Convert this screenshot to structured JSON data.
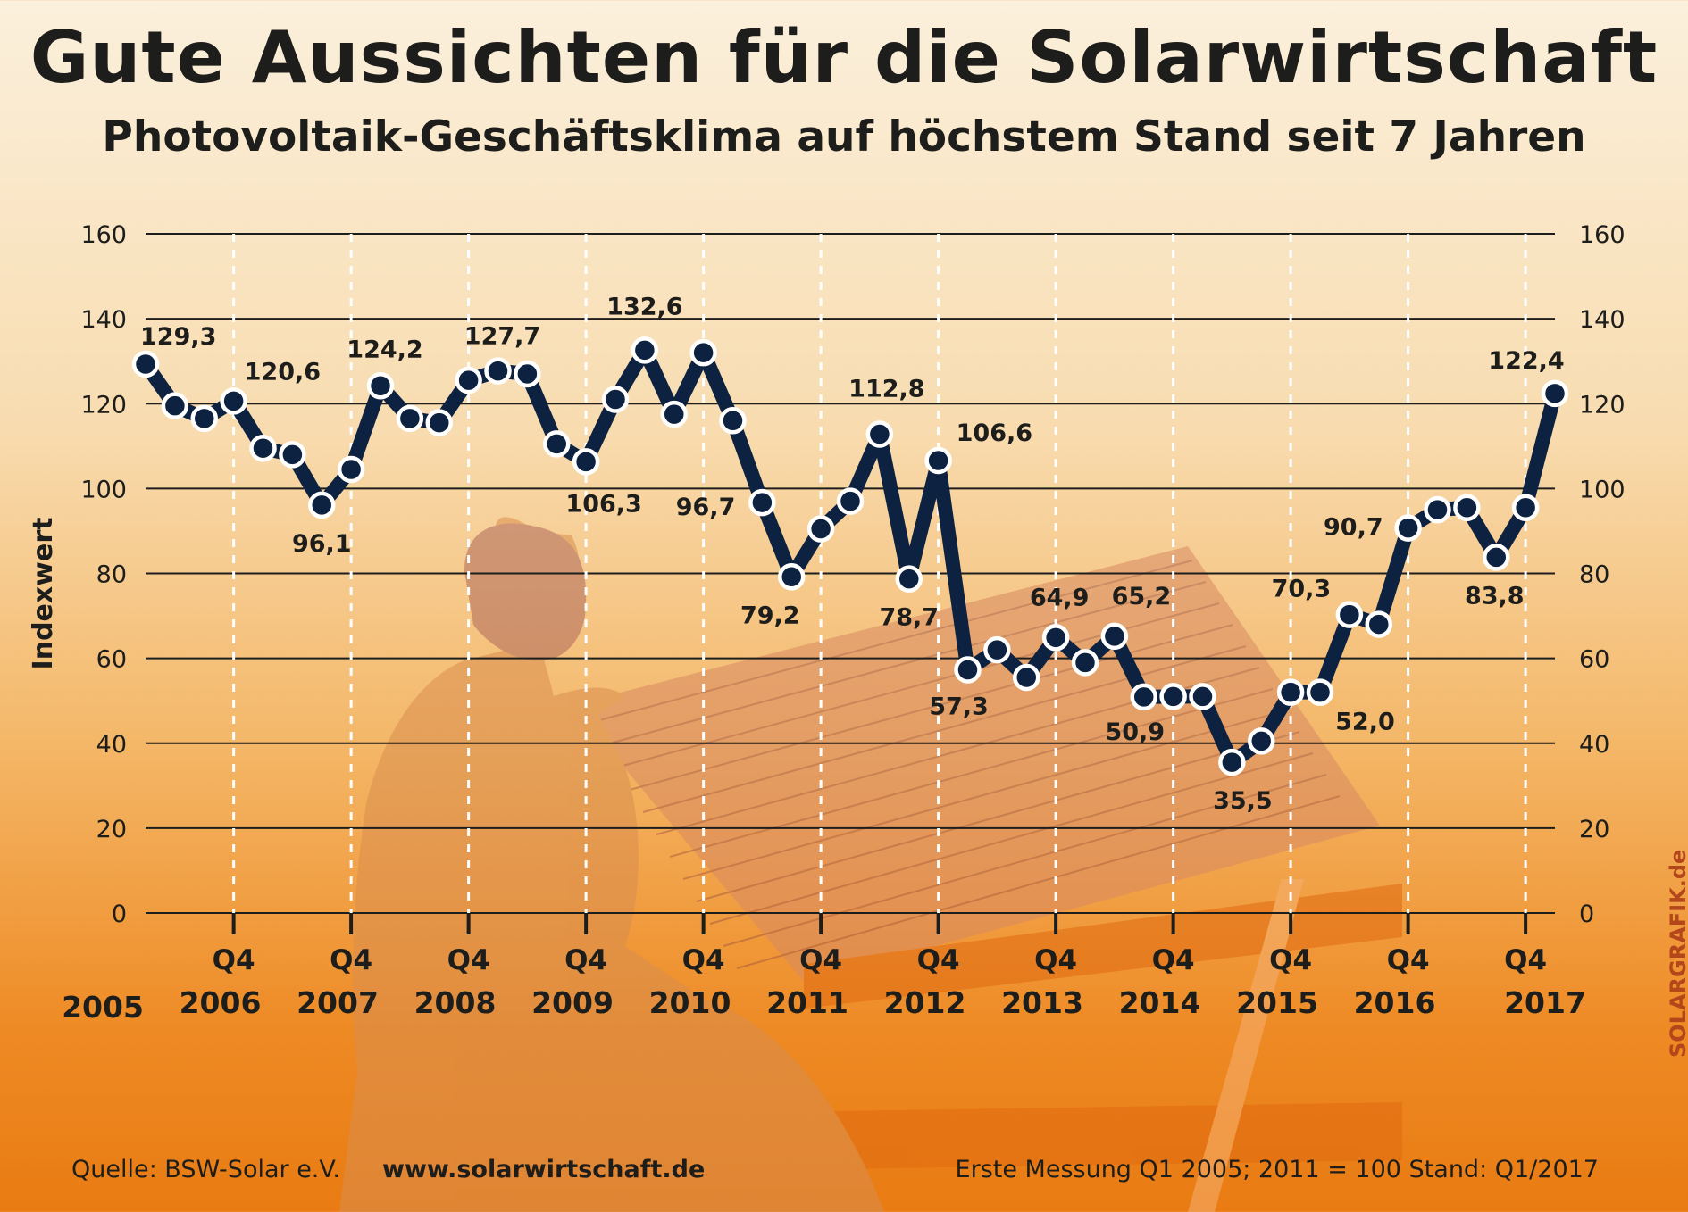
{
  "header": {
    "title": "Gute Aussichten für die Solarwirtschaft",
    "subtitle": "Photovoltaik-Geschäftsklima auf höchstem Stand seit 7 Jahren"
  },
  "footer": {
    "source": "Quelle: BSW-Solar e.V.",
    "url": "www.solarwirtschaft.de",
    "note": "Erste Messung Q1 2005; 2011 = 100  Stand: Q1/2017"
  },
  "credit": "SOLARGRAFIK.de",
  "colors": {
    "line": "#0d2240",
    "marker_fill": "#0d2240",
    "marker_stroke": "#ffffff",
    "grid": "#1d1d1b",
    "text": "#1d1d1b",
    "background_top": "#fbf0dc",
    "background_bottom": "#e97b12"
  },
  "chart_data": {
    "type": "line",
    "title": "Gute Aussichten für die Solarwirtschaft",
    "subtitle": "Photovoltaik-Geschäftsklima auf höchstem Stand seit 7 Jahren",
    "ylabel": "Indexwert",
    "ylim": [
      0,
      160
    ],
    "yticks": [
      0,
      20,
      40,
      60,
      80,
      100,
      120,
      140,
      160
    ],
    "ytick_labels": [
      "0",
      "20",
      "40",
      "60",
      "80",
      "100",
      "120",
      "140",
      "160"
    ],
    "y_axis_both_sides": true,
    "grid": "horizontal solid, vertical dashed at Q4",
    "quarter_tick_label": "Q4",
    "year_labels": [
      "2005",
      "2006",
      "2007",
      "2008",
      "2009",
      "2010",
      "2011",
      "2012",
      "2013",
      "2014",
      "2015",
      "2016",
      "2017"
    ],
    "x": [
      "Q1 2005",
      "Q2 2005",
      "Q3 2005",
      "Q4 2005",
      "Q1 2006",
      "Q2 2006",
      "Q3 2006",
      "Q4 2006",
      "Q1 2007",
      "Q2 2007",
      "Q3 2007",
      "Q4 2007",
      "Q1 2008",
      "Q2 2008",
      "Q3 2008",
      "Q4 2008",
      "Q1 2009",
      "Q2 2009",
      "Q3 2009",
      "Q4 2009",
      "Q1 2010",
      "Q2 2010",
      "Q3 2010",
      "Q4 2010",
      "Q1 2011",
      "Q2 2011",
      "Q3 2011",
      "Q4 2011",
      "Q1 2012",
      "Q2 2012",
      "Q3 2012",
      "Q4 2012",
      "Q1 2013",
      "Q2 2013",
      "Q3 2013",
      "Q4 2013",
      "Q1 2014",
      "Q2 2014",
      "Q3 2014",
      "Q4 2014",
      "Q1 2015",
      "Q2 2015",
      "Q3 2015",
      "Q4 2015",
      "Q1 2016",
      "Q2 2016",
      "Q3 2016",
      "Q4 2016",
      "Q1 2017"
    ],
    "series": [
      {
        "values": [
          129.3,
          119.5,
          116.5,
          120.6,
          109.5,
          108.0,
          96.1,
          104.5,
          124.2,
          116.5,
          115.5,
          125.5,
          127.7,
          127.0,
          110.5,
          106.3,
          121.0,
          132.6,
          117.5,
          132.0,
          116.0,
          96.7,
          79.2,
          90.5,
          97.0,
          112.8,
          78.7,
          106.6,
          57.3,
          62.0,
          55.5,
          64.9,
          59.0,
          65.2,
          50.9,
          51.0,
          51.0,
          35.5,
          40.5,
          52.0,
          52.0,
          70.3,
          68.0,
          90.7,
          95.0,
          95.5,
          83.8,
          95.5,
          122.4
        ]
      }
    ],
    "data_labels": [
      {
        "x": "Q1 2005",
        "text": "129,3"
      },
      {
        "x": "Q4 2005",
        "text": "120,6"
      },
      {
        "x": "Q3 2006",
        "text": "96,1"
      },
      {
        "x": "Q1 2007",
        "text": "124,2"
      },
      {
        "x": "Q1 2008",
        "text": "127,7"
      },
      {
        "x": "Q4 2008",
        "text": "106,3"
      },
      {
        "x": "Q2 2009",
        "text": "132,6"
      },
      {
        "x": "Q2 2010",
        "text": "96,7"
      },
      {
        "x": "Q3 2010",
        "text": "79,2"
      },
      {
        "x": "Q2 2011",
        "text": "112,8"
      },
      {
        "x": "Q3 2011",
        "text": "78,7"
      },
      {
        "x": "Q4 2011",
        "text": "106,6"
      },
      {
        "x": "Q1 2012",
        "text": "57,3"
      },
      {
        "x": "Q4 2012",
        "text": "64,9"
      },
      {
        "x": "Q2 2013",
        "text": "65,2"
      },
      {
        "x": "Q3 2013",
        "text": "50,9"
      },
      {
        "x": "Q2 2014",
        "text": "35,5"
      },
      {
        "x": "Q4 2014",
        "text": "52,0"
      },
      {
        "x": "Q2 2015",
        "text": "70,3"
      },
      {
        "x": "Q4 2015",
        "text": "90,7"
      },
      {
        "x": "Q3 2016",
        "text": "83,8"
      },
      {
        "x": "Q1 2017",
        "text": "122,4"
      }
    ]
  }
}
